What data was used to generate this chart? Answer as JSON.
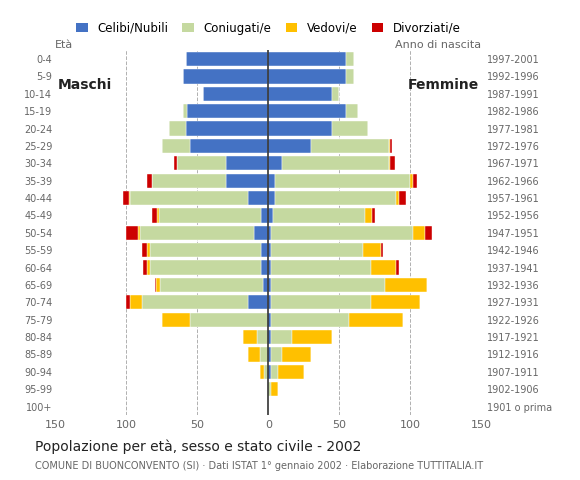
{
  "age_groups": [
    "100+",
    "95-99",
    "90-94",
    "85-89",
    "80-84",
    "75-79",
    "70-74",
    "65-69",
    "60-64",
    "55-59",
    "50-54",
    "45-49",
    "40-44",
    "35-39",
    "30-34",
    "25-29",
    "20-24",
    "15-19",
    "10-14",
    "5-9",
    "0-4"
  ],
  "birth_years": [
    "1901 o prima",
    "1902-1906",
    "1907-1911",
    "1912-1916",
    "1917-1921",
    "1922-1926",
    "1927-1931",
    "1932-1936",
    "1937-1941",
    "1942-1946",
    "1947-1951",
    "1952-1956",
    "1957-1961",
    "1962-1966",
    "1967-1971",
    "1972-1976",
    "1977-1981",
    "1982-1986",
    "1987-1991",
    "1992-1996",
    "1997-2001"
  ],
  "male": {
    "celibe": [
      0,
      0,
      0,
      0,
      0,
      0,
      14,
      4,
      5,
      5,
      10,
      5,
      14,
      30,
      30,
      55,
      58,
      57,
      46,
      60,
      58
    ],
    "coniugato": [
      0,
      0,
      3,
      6,
      8,
      55,
      75,
      72,
      78,
      78,
      80,
      72,
      83,
      52,
      34,
      20,
      12,
      3,
      0,
      0,
      0
    ],
    "vedovo": [
      0,
      0,
      3,
      8,
      10,
      20,
      8,
      3,
      2,
      2,
      2,
      1,
      1,
      0,
      0,
      0,
      0,
      0,
      0,
      0,
      0
    ],
    "divorziato": [
      0,
      0,
      0,
      0,
      0,
      0,
      3,
      1,
      3,
      4,
      8,
      4,
      4,
      3,
      2,
      0,
      0,
      0,
      0,
      0,
      0
    ]
  },
  "female": {
    "nubile": [
      0,
      0,
      2,
      2,
      2,
      2,
      2,
      2,
      2,
      2,
      2,
      3,
      5,
      5,
      10,
      30,
      45,
      55,
      45,
      55,
      55
    ],
    "coniugata": [
      0,
      2,
      5,
      8,
      15,
      55,
      70,
      80,
      70,
      65,
      100,
      65,
      85,
      95,
      75,
      55,
      25,
      8,
      5,
      5,
      5
    ],
    "vedova": [
      0,
      5,
      18,
      20,
      28,
      38,
      35,
      30,
      18,
      12,
      8,
      5,
      2,
      2,
      1,
      1,
      0,
      0,
      0,
      0,
      0
    ],
    "divorziata": [
      0,
      0,
      0,
      0,
      0,
      0,
      0,
      0,
      2,
      2,
      5,
      2,
      5,
      3,
      3,
      1,
      0,
      0,
      0,
      0,
      0
    ]
  },
  "colors": {
    "celibe": "#4472c4",
    "coniugato": "#c5d9a0",
    "vedovo": "#ffc000",
    "divorziato": "#cc0000"
  },
  "title": "Popolazione per età, sesso e stato civile - 2002",
  "subtitle": "COMUNE DI BUONCONVENTO (SI) · Dati ISTAT 1° gennaio 2002 · Elaborazione TUTTITALIA.IT",
  "xlim": 150,
  "background_color": "#ffffff",
  "bar_height": 0.82,
  "legend_labels": [
    "Celibi/Nubili",
    "Coniugati/e",
    "Vedovi/e",
    "Divorziati/e"
  ],
  "label_eta": "Età",
  "label_anno": "Anno di nascita",
  "label_maschi": "Maschi",
  "label_femmine": "Femmine"
}
